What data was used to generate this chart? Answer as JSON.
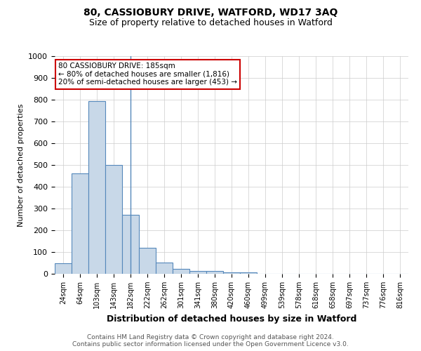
{
  "title": "80, CASSIOBURY DRIVE, WATFORD, WD17 3AQ",
  "subtitle": "Size of property relative to detached houses in Watford",
  "xlabel": "Distribution of detached houses by size in Watford",
  "ylabel": "Number of detached properties",
  "footer_line1": "Contains HM Land Registry data © Crown copyright and database right 2024.",
  "footer_line2": "Contains public sector information licensed under the Open Government Licence v3.0.",
  "bin_labels": [
    "24sqm",
    "64sqm",
    "103sqm",
    "143sqm",
    "182sqm",
    "222sqm",
    "262sqm",
    "301sqm",
    "341sqm",
    "380sqm",
    "420sqm",
    "460sqm",
    "499sqm",
    "539sqm",
    "578sqm",
    "618sqm",
    "658sqm",
    "697sqm",
    "737sqm",
    "776sqm",
    "816sqm"
  ],
  "bar_heights": [
    48,
    460,
    795,
    500,
    270,
    120,
    52,
    22,
    12,
    12,
    8,
    8,
    0,
    0,
    0,
    0,
    0,
    0,
    0,
    0,
    0
  ],
  "bar_color": "#c8d8e8",
  "bar_edge_color": "#5588bb",
  "property_line_bin": 4,
  "annotation_line1": "80 CASSIOBURY DRIVE: 185sqm",
  "annotation_line2": "← 80% of detached houses are smaller (1,816)",
  "annotation_line3": "20% of semi-detached houses are larger (453) →",
  "annotation_box_facecolor": "#ffffff",
  "annotation_box_edgecolor": "#cc0000",
  "ylim": [
    0,
    1000
  ],
  "yticks": [
    0,
    100,
    200,
    300,
    400,
    500,
    600,
    700,
    800,
    900,
    1000
  ],
  "background_color": "#ffffff",
  "grid_color": "#cccccc",
  "title_fontsize": 10,
  "subtitle_fontsize": 9,
  "xlabel_fontsize": 9,
  "ylabel_fontsize": 8,
  "tick_fontsize": 8,
  "xtick_fontsize": 7,
  "footer_fontsize": 6.5,
  "annotation_fontsize": 7.5,
  "footer_color": "#555555"
}
